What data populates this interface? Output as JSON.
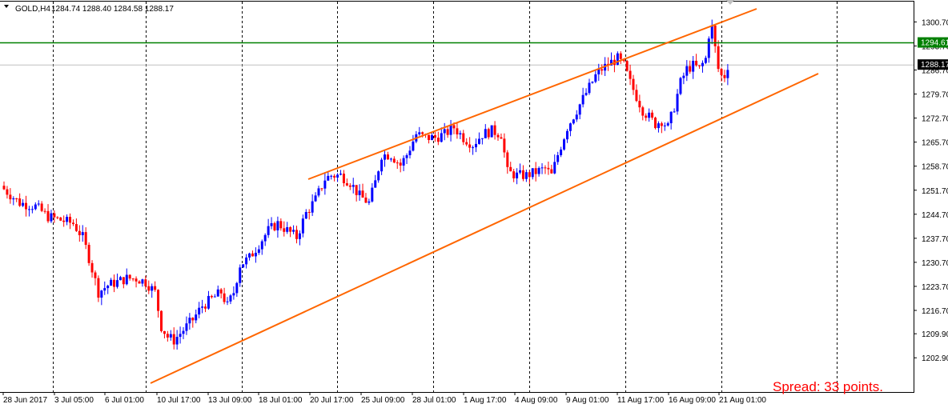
{
  "header": {
    "symbol_label": "GOLD,H4",
    "ohlc": "1284.74 1288.40 1284.58 1288.17"
  },
  "spread_text": "Spread: 33 points.",
  "colors": {
    "bull": "#0000ff",
    "bear": "#ff0000",
    "channel": "#ff6600",
    "hline": "#008000",
    "grid": "#000000",
    "current_price_line": "#c0c0c0"
  },
  "price_tags": {
    "horizontal_line": "1294.61",
    "current_price": "1288.17"
  },
  "chart_data": {
    "type": "candlestick",
    "symbol": "GOLD",
    "timeframe": "H4",
    "ylim": [
      1199.5,
      1307.5
    ],
    "y_ticks": [
      "1300.70",
      "1293.70",
      "1286.70",
      "1279.70",
      "1272.70",
      "1265.70",
      "1258.70",
      "1251.70",
      "1244.70",
      "1237.70",
      "1230.70",
      "1223.70",
      "1216.70",
      "1209.90",
      "1202.90"
    ],
    "x_ticks": [
      "28 Jun 2017",
      "3 Jul 05:00",
      "6 Jul 01:00",
      "10 Jul 17:00",
      "13 Jul 09:00",
      "18 Jul 01:00",
      "20 Jul 17:00",
      "25 Jul 09:00",
      "28 Jul 01:00",
      "1 Aug 17:00",
      "4 Aug 09:00",
      "9 Aug 01:00",
      "11 Aug 17:00",
      "16 Aug 09:00",
      "21 Aug 01:00"
    ],
    "horizontal_line": 1294.61,
    "current_price": 1288.17,
    "channel": {
      "upper": {
        "start": [
          "20 Jul",
          1259.0
        ],
        "end": [
          "22 Aug",
          1303.5
        ]
      },
      "lower": {
        "start": [
          "10 Jul",
          1205.0
        ],
        "end": [
          "22 Aug",
          1287.5
        ]
      }
    },
    "close_path": [
      [
        0,
        1252
      ],
      [
        5,
        1248
      ],
      [
        10,
        1247
      ],
      [
        14,
        1244
      ],
      [
        18,
        1243
      ],
      [
        22,
        1242
      ],
      [
        25,
        1238
      ],
      [
        27,
        1232
      ],
      [
        30,
        1222
      ],
      [
        33,
        1224
      ],
      [
        36,
        1225
      ],
      [
        39,
        1226
      ],
      [
        42,
        1226
      ],
      [
        45,
        1225
      ],
      [
        48,
        1222
      ],
      [
        50,
        1212
      ],
      [
        52,
        1209
      ],
      [
        54,
        1208
      ],
      [
        57,
        1211
      ],
      [
        60,
        1214
      ],
      [
        63,
        1218
      ],
      [
        66,
        1220
      ],
      [
        69,
        1222
      ],
      [
        71,
        1218
      ],
      [
        73,
        1222
      ],
      [
        75,
        1230
      ],
      [
        78,
        1232
      ],
      [
        81,
        1236
      ],
      [
        84,
        1240
      ],
      [
        87,
        1242
      ],
      [
        90,
        1240
      ],
      [
        93,
        1238
      ],
      [
        96,
        1245
      ],
      [
        99,
        1249
      ],
      [
        102,
        1255
      ],
      [
        104,
        1256
      ],
      [
        107,
        1256
      ],
      [
        110,
        1254
      ],
      [
        113,
        1250
      ],
      [
        116,
        1248
      ],
      [
        118,
        1254
      ],
      [
        120,
        1262
      ],
      [
        123,
        1262
      ],
      [
        126,
        1259
      ],
      [
        128,
        1262
      ],
      [
        131,
        1268
      ],
      [
        134,
        1267
      ],
      [
        137,
        1267
      ],
      [
        140,
        1268
      ],
      [
        143,
        1270
      ],
      [
        146,
        1267
      ],
      [
        149,
        1265
      ],
      [
        152,
        1268
      ],
      [
        155,
        1269
      ],
      [
        158,
        1268
      ],
      [
        160,
        1257
      ],
      [
        163,
        1256
      ],
      [
        166,
        1256
      ],
      [
        169,
        1257
      ],
      [
        172,
        1258
      ],
      [
        174,
        1256
      ],
      [
        176,
        1262
      ],
      [
        179,
        1270
      ],
      [
        182,
        1275
      ],
      [
        185,
        1280
      ],
      [
        188,
        1285
      ],
      [
        190,
        1287
      ],
      [
        193,
        1289
      ],
      [
        195,
        1290
      ],
      [
        197,
        1288
      ],
      [
        199,
        1283
      ],
      [
        201,
        1279
      ],
      [
        203,
        1275
      ],
      [
        205,
        1273
      ],
      [
        207,
        1271
      ],
      [
        209,
        1272
      ],
      [
        211,
        1270
      ],
      [
        213,
        1276
      ],
      [
        215,
        1283
      ],
      [
        217,
        1287
      ],
      [
        219,
        1288
      ],
      [
        221,
        1287
      ],
      [
        223,
        1290
      ],
      [
        224,
        1297
      ],
      [
        225,
        1299
      ],
      [
        226,
        1293
      ],
      [
        227,
        1287
      ],
      [
        228,
        1285
      ],
      [
        229,
        1285
      ],
      [
        230,
        1288
      ]
    ]
  }
}
